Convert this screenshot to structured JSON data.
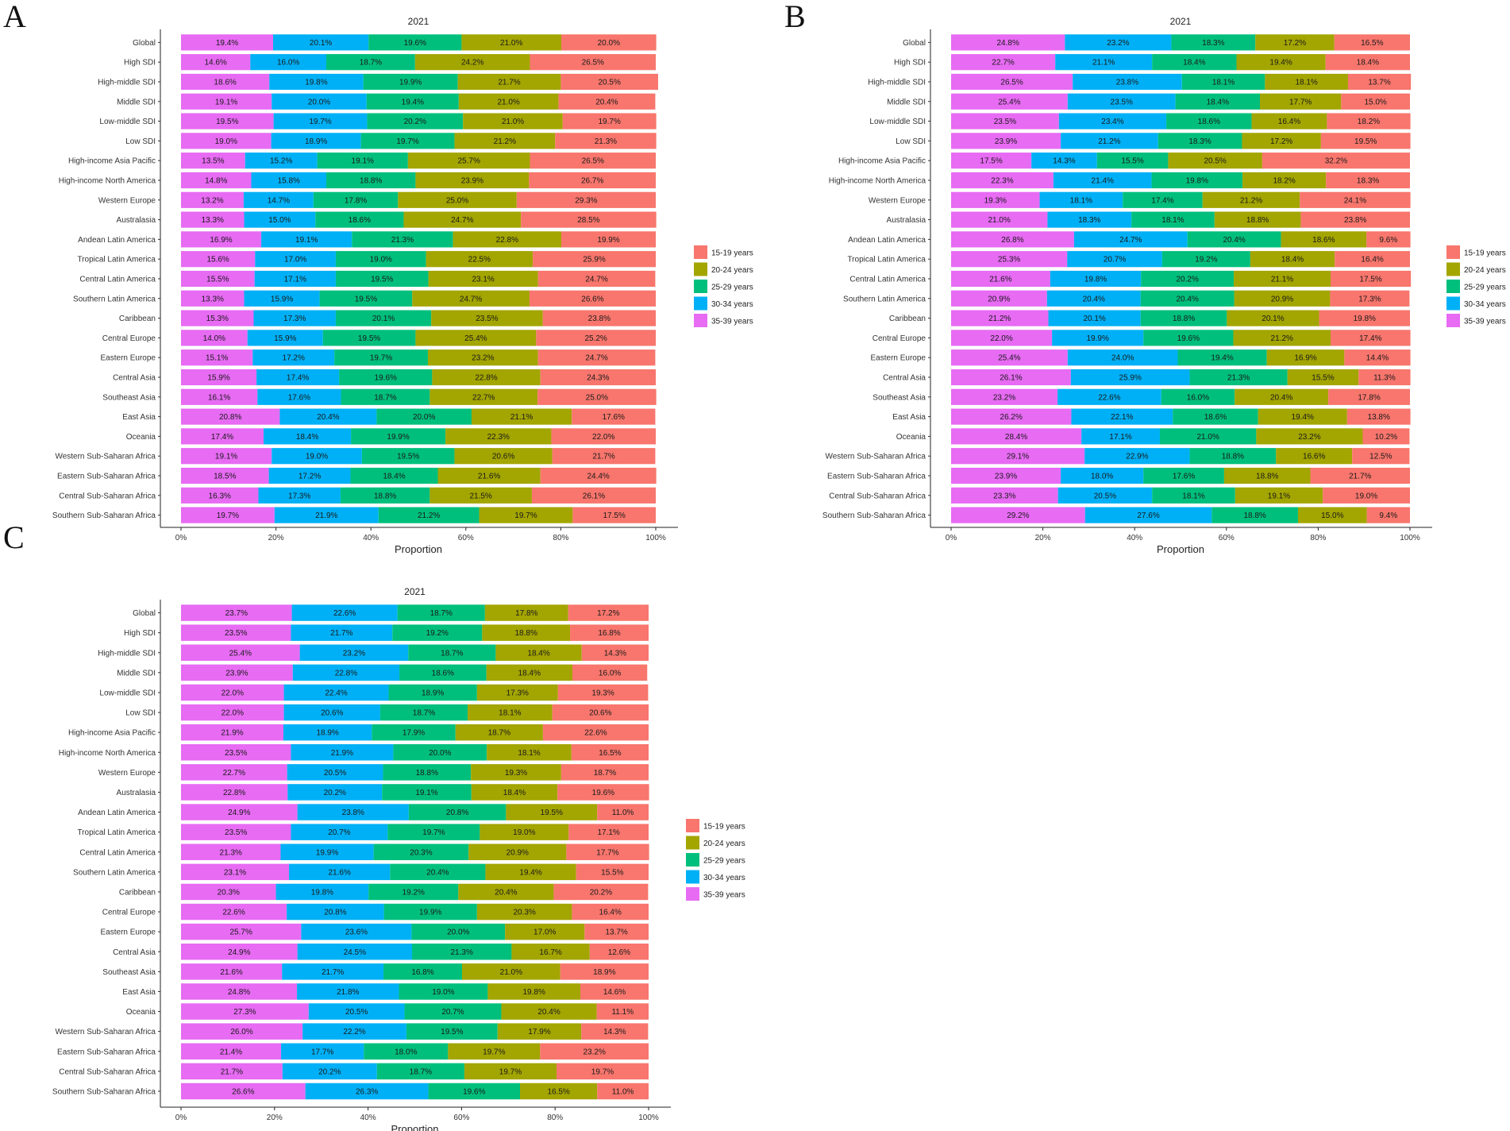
{
  "colors": {
    "15-19 years": "#f8766d",
    "20-24 years": "#a3a500",
    "25-29 years": "#00bf7d",
    "30-34 years": "#00b0f6",
    "35-39 years": "#e76bf3"
  },
  "chart_data": [
    {
      "panel": "A",
      "type": "bar",
      "orientation": "horizontal",
      "stacked": "percent",
      "title": "2021",
      "xlabel": "Proportion",
      "ylabel": "",
      "xlim": [
        0,
        100
      ],
      "x_ticks": [
        "0%",
        "20%",
        "40%",
        "60%",
        "80%",
        "100%"
      ],
      "legend": [
        "15-19 years",
        "20-24 years",
        "25-29 years",
        "30-34 years",
        "35-39 years"
      ],
      "legend_position": "right",
      "stack_order": [
        "35-39 years",
        "30-34 years",
        "25-29 years",
        "20-24 years",
        "15-19 years"
      ],
      "categories": [
        "Global",
        "High SDI",
        "High-middle SDI",
        "Middle SDI",
        "Low-middle SDI",
        "Low SDI",
        "High-income Asia Pacific",
        "High-income North America",
        "Western Europe",
        "Australasia",
        "Andean Latin America",
        "Tropical Latin America",
        "Central Latin America",
        "Southern Latin America",
        "Caribbean",
        "Central Europe",
        "Eastern Europe",
        "Central Asia",
        "Southeast Asia",
        "East Asia",
        "Oceania",
        "Western Sub-Saharan Africa",
        "Eastern Sub-Saharan Africa",
        "Central Sub-Saharan Africa",
        "Southern Sub-Saharan Africa"
      ],
      "series": [
        {
          "name": "35-39 years",
          "values": [
            19.4,
            14.6,
            18.6,
            19.1,
            19.5,
            19.0,
            13.5,
            14.8,
            13.2,
            13.3,
            16.9,
            15.6,
            15.5,
            13.3,
            15.3,
            14.0,
            15.1,
            15.9,
            16.1,
            20.8,
            17.4,
            19.1,
            18.5,
            16.3,
            19.7
          ]
        },
        {
          "name": "30-34 years",
          "values": [
            20.1,
            16.0,
            19.8,
            20.0,
            19.7,
            18.9,
            15.2,
            15.8,
            14.7,
            15.0,
            19.1,
            17.0,
            17.1,
            15.9,
            17.3,
            15.9,
            17.2,
            17.4,
            17.6,
            20.4,
            18.4,
            19.0,
            17.2,
            17.3,
            21.9
          ]
        },
        {
          "name": "25-29 years",
          "values": [
            19.6,
            18.7,
            19.9,
            19.4,
            20.2,
            19.7,
            19.1,
            18.8,
            17.8,
            18.6,
            21.3,
            19.0,
            19.5,
            19.5,
            20.1,
            19.5,
            19.7,
            19.6,
            18.7,
            20.0,
            19.9,
            19.5,
            18.4,
            18.8,
            21.2
          ]
        },
        {
          "name": "20-24 years",
          "values": [
            21.0,
            24.2,
            21.7,
            21.0,
            21.0,
            21.2,
            25.7,
            23.9,
            25.0,
            24.7,
            22.8,
            22.5,
            23.1,
            24.7,
            23.5,
            25.4,
            23.2,
            22.8,
            22.7,
            21.1,
            22.3,
            20.6,
            21.6,
            21.5,
            19.7
          ]
        },
        {
          "name": "15-19 years",
          "values": [
            20.0,
            26.5,
            20.5,
            20.4,
            19.7,
            21.3,
            26.5,
            26.7,
            29.3,
            28.5,
            19.9,
            25.9,
            24.7,
            26.6,
            23.8,
            25.2,
            24.7,
            24.3,
            25.0,
            17.6,
            22.0,
            21.7,
            24.4,
            26.1,
            17.5
          ]
        }
      ]
    },
    {
      "panel": "B",
      "type": "bar",
      "orientation": "horizontal",
      "stacked": "percent",
      "title": "2021",
      "xlabel": "Proportion",
      "ylabel": "",
      "xlim": [
        0,
        100
      ],
      "x_ticks": [
        "0%",
        "20%",
        "40%",
        "60%",
        "80%",
        "100%"
      ],
      "legend": [
        "15-19 years",
        "20-24 years",
        "25-29 years",
        "30-34 years",
        "35-39 years"
      ],
      "legend_position": "right",
      "stack_order": [
        "35-39 years",
        "30-34 years",
        "25-29 years",
        "20-24 years",
        "15-19 years"
      ],
      "categories": [
        "Global",
        "High SDI",
        "High-middle SDI",
        "Middle SDI",
        "Low-middle SDI",
        "Low SDI",
        "High-income Asia Pacific",
        "High-income North America",
        "Western Europe",
        "Australasia",
        "Andean Latin America",
        "Tropical Latin America",
        "Central Latin America",
        "Southern Latin America",
        "Caribbean",
        "Central Europe",
        "Eastern Europe",
        "Central Asia",
        "Southeast Asia",
        "East Asia",
        "Oceania",
        "Western Sub-Saharan Africa",
        "Eastern Sub-Saharan Africa",
        "Central Sub-Saharan Africa",
        "Southern Sub-Saharan Africa"
      ],
      "series": [
        {
          "name": "35-39 years",
          "values": [
            24.8,
            22.7,
            26.5,
            25.4,
            23.5,
            23.9,
            17.5,
            22.3,
            19.3,
            21.0,
            26.8,
            25.3,
            21.6,
            20.9,
            21.2,
            22.0,
            25.4,
            26.1,
            23.2,
            26.2,
            28.4,
            29.1,
            23.9,
            23.3,
            29.2
          ]
        },
        {
          "name": "30-34 years",
          "values": [
            23.2,
            21.1,
            23.8,
            23.5,
            23.4,
            21.2,
            14.3,
            21.4,
            18.1,
            18.3,
            24.7,
            20.7,
            19.8,
            20.4,
            20.1,
            19.9,
            24.0,
            25.9,
            22.6,
            22.1,
            17.1,
            22.9,
            18.0,
            20.5,
            27.6
          ]
        },
        {
          "name": "25-29 years",
          "values": [
            18.3,
            18.4,
            18.1,
            18.4,
            18.6,
            18.3,
            15.5,
            19.8,
            17.4,
            18.1,
            20.4,
            19.2,
            20.2,
            20.4,
            18.8,
            19.6,
            19.4,
            21.3,
            16.0,
            18.6,
            21.0,
            18.8,
            17.6,
            18.1,
            18.8
          ]
        },
        {
          "name": "20-24 years",
          "values": [
            17.2,
            19.4,
            18.1,
            17.7,
            16.4,
            17.2,
            20.5,
            18.2,
            21.2,
            18.8,
            18.6,
            18.4,
            21.1,
            20.9,
            20.1,
            21.2,
            16.9,
            15.5,
            20.4,
            19.4,
            23.2,
            16.6,
            18.8,
            19.1,
            15.0
          ]
        },
        {
          "name": "15-19 years",
          "values": [
            16.5,
            18.4,
            13.7,
            15.0,
            18.2,
            19.5,
            32.2,
            18.3,
            24.1,
            23.8,
            9.6,
            16.4,
            17.5,
            17.3,
            19.8,
            17.4,
            14.4,
            11.3,
            17.8,
            13.8,
            10.2,
            12.5,
            21.7,
            19.0,
            9.4
          ]
        }
      ]
    },
    {
      "panel": "C",
      "type": "bar",
      "orientation": "horizontal",
      "stacked": "percent",
      "title": "2021",
      "xlabel": "Proportion",
      "ylabel": "",
      "xlim": [
        0,
        100
      ],
      "x_ticks": [
        "0%",
        "20%",
        "40%",
        "60%",
        "80%",
        "100%"
      ],
      "legend": [
        "15-19 years",
        "20-24 years",
        "25-29 years",
        "30-34 years",
        "35-39 years"
      ],
      "legend_position": "right",
      "stack_order": [
        "35-39 years",
        "30-34 years",
        "25-29 years",
        "20-24 years",
        "15-19 years"
      ],
      "categories": [
        "Global",
        "High SDI",
        "High-middle SDI",
        "Middle SDI",
        "Low-middle SDI",
        "Low SDI",
        "High-income Asia Pacific",
        "High-income North America",
        "Western Europe",
        "Australasia",
        "Andean Latin America",
        "Tropical Latin America",
        "Central Latin America",
        "Southern Latin America",
        "Caribbean",
        "Central Europe",
        "Eastern Europe",
        "Central Asia",
        "Southeast Asia",
        "East Asia",
        "Oceania",
        "Western Sub-Saharan Africa",
        "Eastern Sub-Saharan Africa",
        "Central Sub-Saharan Africa",
        "Southern Sub-Saharan Africa"
      ],
      "series": [
        {
          "name": "35-39 years",
          "values": [
            23.7,
            23.5,
            25.4,
            23.9,
            22.0,
            22.0,
            21.9,
            23.5,
            22.7,
            22.8,
            24.9,
            23.5,
            21.3,
            23.1,
            20.3,
            22.6,
            25.7,
            24.9,
            21.6,
            24.8,
            27.3,
            26.0,
            21.4,
            21.7,
            26.6
          ]
        },
        {
          "name": "30-34 years",
          "values": [
            22.6,
            21.7,
            23.2,
            22.8,
            22.4,
            20.6,
            18.9,
            21.9,
            20.5,
            20.2,
            23.8,
            20.7,
            19.9,
            21.6,
            19.8,
            20.8,
            23.6,
            24.5,
            21.7,
            21.8,
            20.5,
            22.2,
            17.7,
            20.2,
            26.3
          ]
        },
        {
          "name": "25-29 years",
          "values": [
            18.7,
            19.2,
            18.7,
            18.6,
            18.9,
            18.7,
            17.9,
            20.0,
            18.8,
            19.1,
            20.8,
            19.7,
            20.3,
            20.4,
            19.2,
            19.9,
            20.0,
            21.3,
            16.8,
            19.0,
            20.7,
            19.5,
            18.0,
            18.7,
            19.6
          ]
        },
        {
          "name": "20-24 years",
          "values": [
            17.8,
            18.8,
            18.4,
            18.4,
            17.3,
            18.1,
            18.7,
            18.1,
            19.3,
            18.4,
            19.5,
            19.0,
            20.9,
            19.4,
            20.4,
            20.3,
            17.0,
            16.7,
            21.0,
            19.8,
            20.4,
            17.9,
            19.7,
            19.7,
            16.5
          ]
        },
        {
          "name": "15-19 years",
          "values": [
            17.2,
            16.8,
            14.3,
            16.0,
            19.3,
            20.6,
            22.6,
            16.5,
            18.7,
            19.6,
            11.0,
            17.1,
            17.7,
            15.5,
            20.2,
            16.4,
            13.7,
            12.6,
            18.9,
            14.6,
            11.1,
            14.3,
            23.2,
            19.7,
            11.0
          ]
        }
      ]
    }
  ]
}
